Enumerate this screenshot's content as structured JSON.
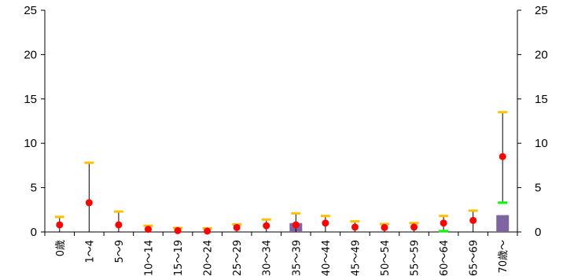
{
  "chart_data": {
    "type": "bar",
    "title": "",
    "xlabel": "",
    "ylabel": "",
    "ylim": [
      0,
      25
    ],
    "y_ticks": [
      0,
      5,
      10,
      15,
      20,
      25
    ],
    "y2_ticks": [
      0,
      5,
      10,
      15,
      20,
      25
    ],
    "categories": [
      "0歳",
      "1～4",
      "5～9",
      "10～14",
      "15～19",
      "20～24",
      "25～29",
      "30～34",
      "35～39",
      "40～44",
      "45～49",
      "50～54",
      "55～59",
      "60～64",
      "65～69",
      "70歳～"
    ],
    "series": [
      {
        "type": "bar",
        "color": "#8064a2",
        "values": [
          0,
          0,
          0,
          0,
          0,
          0,
          0,
          0,
          1.0,
          0,
          0,
          0,
          0,
          0,
          0,
          1.9
        ]
      },
      {
        "type": "point",
        "color": "#ff0000",
        "values": [
          0.8,
          3.3,
          0.8,
          0.3,
          0.15,
          0.1,
          0.5,
          0.7,
          0.8,
          1.0,
          0.55,
          0.5,
          0.55,
          1.0,
          1.3,
          8.5
        ]
      },
      {
        "type": "upper-limit",
        "color": "#ffc000",
        "values": [
          1.7,
          7.8,
          2.3,
          0.7,
          0.45,
          0.4,
          0.85,
          1.4,
          2.1,
          1.8,
          1.2,
          0.9,
          1.0,
          1.8,
          2.4,
          13.5
        ]
      },
      {
        "type": "lower-limit",
        "color": "#00ff00",
        "values": [
          0,
          0,
          0,
          0,
          0,
          0,
          0,
          0,
          0,
          0,
          0,
          0,
          0,
          0.1,
          0,
          3.3
        ]
      }
    ],
    "grid": false,
    "legend": "none"
  }
}
